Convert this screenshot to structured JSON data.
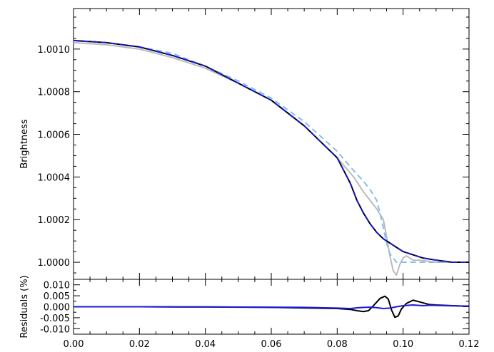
{
  "chart_data": [
    {
      "type": "line",
      "panel": "top",
      "ylabel": "Brightness",
      "xlim": [
        0.0,
        0.12
      ],
      "ylim": [
        0.99992,
        1.00119
      ],
      "yticks": [
        1.0,
        1.0002,
        1.0004,
        1.0006,
        1.0008,
        1.001
      ],
      "ytick_labels": [
        "1.0000",
        "1.0002",
        "1.0004",
        "1.0006",
        "1.0008",
        "1.0010"
      ],
      "grid": false,
      "series": [
        {
          "color": "#bbbbbb",
          "style": "solid",
          "x": [
            0.0,
            0.01,
            0.02,
            0.03,
            0.04,
            0.05,
            0.06,
            0.07,
            0.08,
            0.085,
            0.088,
            0.09,
            0.092,
            0.094,
            0.095,
            0.096,
            0.097,
            0.098,
            0.099,
            0.1,
            0.101,
            0.103,
            0.105,
            0.11,
            0.12
          ],
          "y": [
            1.00103,
            1.00102,
            1.001,
            1.00096,
            1.00091,
            1.00084,
            1.00076,
            1.00064,
            1.00049,
            1.0004,
            1.00033,
            1.00029,
            1.00025,
            1.0002,
            1.00012,
            1.00003,
            0.99996,
            0.99994,
            0.99999,
            1.00002,
            1.00003,
            1.00001,
            1.00001,
            1.0,
            1.0
          ]
        },
        {
          "color": "#87bfe8",
          "style": "dashed",
          "x": [
            0.0,
            0.01,
            0.02,
            0.03,
            0.04,
            0.05,
            0.06,
            0.07,
            0.08,
            0.085,
            0.088,
            0.09,
            0.092,
            0.093,
            0.094,
            0.095,
            0.096,
            0.097,
            0.098,
            0.099,
            0.1,
            0.102,
            0.105,
            0.11,
            0.12
          ],
          "y": [
            1.00104,
            1.00103,
            1.00101,
            1.00098,
            1.00092,
            1.00085,
            1.00077,
            1.00066,
            1.00052,
            1.00043,
            1.00038,
            1.00034,
            1.00029,
            1.00023,
            1.00016,
            1.00009,
            1.00004,
            1.00002,
            1.0,
            1.0,
            1.0,
            1.0,
            1.0,
            1.0,
            1.0
          ]
        },
        {
          "color": "#000000",
          "style": "solid",
          "x": [
            0.0,
            0.01,
            0.02,
            0.03,
            0.04,
            0.05,
            0.06,
            0.07,
            0.08,
            0.084,
            0.086,
            0.088,
            0.09,
            0.092,
            0.094,
            0.096,
            0.098,
            0.1,
            0.102,
            0.104,
            0.106,
            0.11,
            0.115,
            0.12
          ],
          "y": [
            1.00104,
            1.00103,
            1.00101,
            1.00097,
            1.00092,
            1.00084,
            1.00076,
            1.00064,
            1.00049,
            1.00037,
            1.00029,
            1.00023,
            1.00018,
            1.00014,
            1.00011,
            1.00009,
            1.00007,
            1.00005,
            1.00004,
            1.00003,
            1.00002,
            1.00001,
            1.0,
            1.0
          ]
        },
        {
          "color": "#1a1ad6",
          "style": "dashed",
          "x": [
            0.0,
            0.01,
            0.02,
            0.03,
            0.04,
            0.05,
            0.06,
            0.07,
            0.08,
            0.084,
            0.086,
            0.088,
            0.09,
            0.092,
            0.094,
            0.096,
            0.098,
            0.1,
            0.102,
            0.104,
            0.106,
            0.11,
            0.115,
            0.12
          ],
          "y": [
            1.00104,
            1.00103,
            1.00101,
            1.00097,
            1.00092,
            1.00084,
            1.00076,
            1.00064,
            1.00049,
            1.00037,
            1.00029,
            1.00023,
            1.00018,
            1.00014,
            1.00011,
            1.00009,
            1.00007,
            1.00005,
            1.00004,
            1.00003,
            1.00002,
            1.00001,
            1.0,
            1.0
          ]
        }
      ]
    },
    {
      "type": "line",
      "panel": "bottom",
      "ylabel": "Residuals (%)",
      "xlim": [
        0.0,
        0.12
      ],
      "ylim": [
        -0.0125,
        0.0125
      ],
      "yticks": [
        -0.01,
        -0.005,
        0.0,
        0.005,
        0.01
      ],
      "ytick_labels": [
        "-0.010",
        "-0.005",
        "0.000",
        "0.005",
        "0.010"
      ],
      "xticks": [
        0.0,
        0.02,
        0.04,
        0.06,
        0.08,
        0.1,
        0.12
      ],
      "xtick_labels": [
        "0.00",
        "0.02",
        "0.04",
        "0.06",
        "0.08",
        "0.10",
        "0.12"
      ],
      "grid": false,
      "series": [
        {
          "color": "#000000",
          "style": "solid",
          "x": [
            0.0,
            0.02,
            0.04,
            0.06,
            0.08,
            0.084,
            0.086,
            0.088,
            0.0895,
            0.091,
            0.093,
            0.0945,
            0.0955,
            0.0965,
            0.0975,
            0.0985,
            0.0995,
            0.101,
            0.103,
            0.105,
            0.108,
            0.11,
            0.115,
            0.12
          ],
          "y": [
            0.0,
            0.0,
            -0.0001,
            -0.0003,
            -0.0008,
            -0.0012,
            -0.0018,
            -0.0022,
            -0.0018,
            0.0005,
            0.0038,
            0.0048,
            0.0035,
            -0.0015,
            -0.0048,
            -0.0042,
            -0.001,
            0.0015,
            0.003,
            0.0022,
            0.001,
            0.0008,
            0.0005,
            0.0002
          ]
        },
        {
          "color": "#1a1ad6",
          "style": "solid",
          "x": [
            0.0,
            0.02,
            0.04,
            0.06,
            0.07,
            0.08,
            0.084,
            0.086,
            0.088,
            0.09,
            0.092,
            0.094,
            0.096,
            0.098,
            0.1,
            0.103,
            0.106,
            0.108,
            0.11,
            0.115,
            0.12
          ],
          "y": [
            0.0,
            0.0,
            -0.0001,
            -0.0002,
            -0.0003,
            -0.0006,
            -0.0008,
            -0.0005,
            -0.0003,
            -0.0002,
            -0.0004,
            -0.0008,
            -0.0006,
            0.0,
            0.0005,
            0.0008,
            0.0005,
            0.0007,
            0.0006,
            0.0004,
            0.0003
          ]
        }
      ]
    }
  ]
}
